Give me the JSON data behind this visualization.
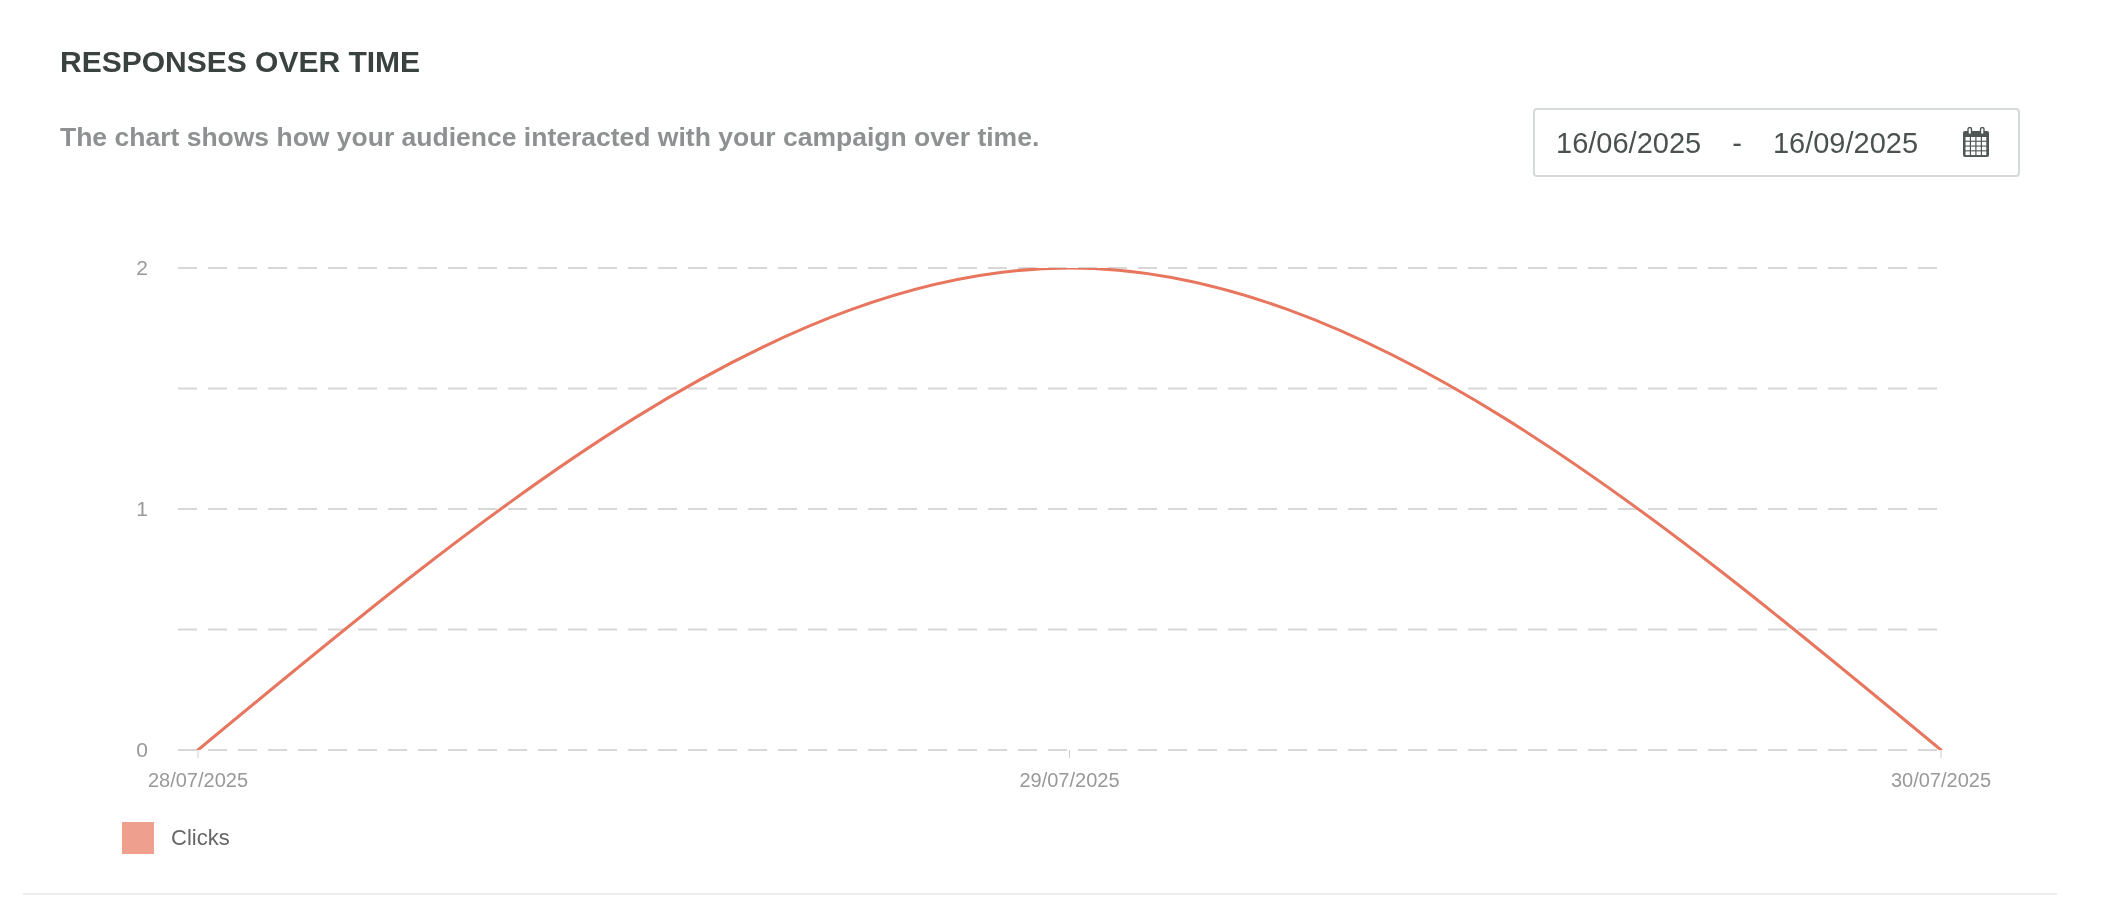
{
  "chart_data": {
    "type": "line",
    "title": "RESPONSES OVER TIME",
    "subtitle": "The chart shows how your audience interacted with your campaign over time.",
    "annotations": [
      "16/06/2025 - 16/09/2025"
    ],
    "categories": [
      "28/07/2025",
      "29/07/2025",
      "30/07/2025"
    ],
    "series": [
      {
        "name": "Clicks",
        "color": "#e8765e",
        "values": [
          0,
          2,
          0
        ]
      }
    ],
    "ylim": [
      0,
      2
    ],
    "yticks": [
      0,
      {
        "value": 0.5,
        "label": null
      },
      1,
      {
        "value": 1.5,
        "label": null
      },
      2
    ],
    "grid": "y",
    "legend": "bottom left",
    "line_style": "solid"
  }
}
